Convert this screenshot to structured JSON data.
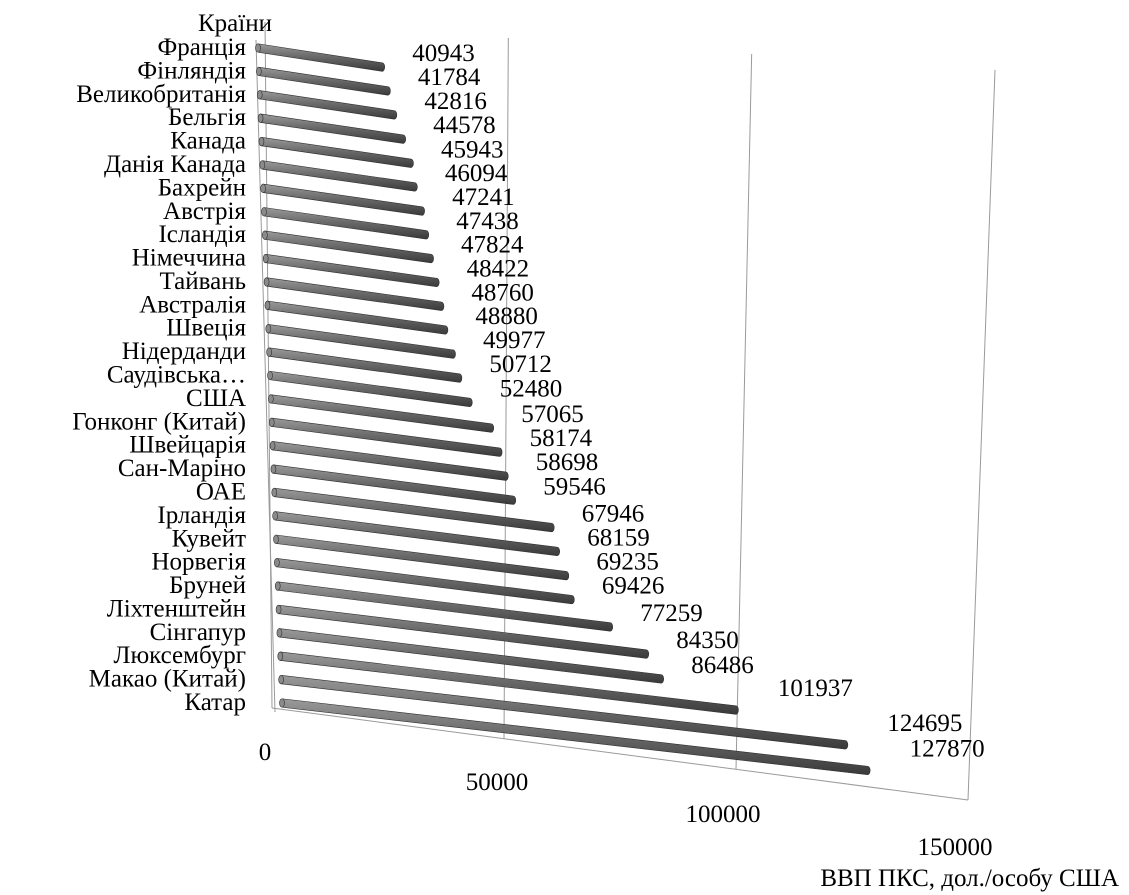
{
  "chart_data": {
    "type": "bar",
    "orientation": "horizontal",
    "perspective": "3d",
    "ylabel": "Країни",
    "xlabel": "ВВП ПКС, дол./особу США",
    "xlim": [
      0,
      150000
    ],
    "x_ticks": [
      "0",
      "50000",
      "100000",
      "150000"
    ],
    "grid": true,
    "bar_color": "#6b6b6b",
    "categories": [
      "Франція",
      "Фінляндія",
      "Великобританія",
      "Бельгія",
      "Канада",
      "Данія Канада",
      "Бахрейн",
      "Австрія",
      "Ісландія",
      "Німеччина",
      "Тайвань",
      "Австралія",
      "Швеція",
      "Нідерданди",
      "Саудівська…",
      "США",
      "Гонконг (Китай)",
      "Швейцарія",
      "Сан-Маріно",
      "ОАЕ",
      "Ірландія",
      "Кувейт",
      "Норвегія",
      "Бруней",
      "Ліхтенштейн",
      "Сінгапур",
      "Люксембург",
      "Макао (Китай)",
      "Катар"
    ],
    "values": [
      40943,
      41784,
      42816,
      44578,
      45943,
      46094,
      47241,
      47438,
      47824,
      48422,
      48760,
      48880,
      49977,
      50712,
      52480,
      57065,
      58174,
      58698,
      59546,
      67946,
      68159,
      69235,
      69426,
      77259,
      84350,
      86486,
      101937,
      124695,
      127870
    ]
  }
}
